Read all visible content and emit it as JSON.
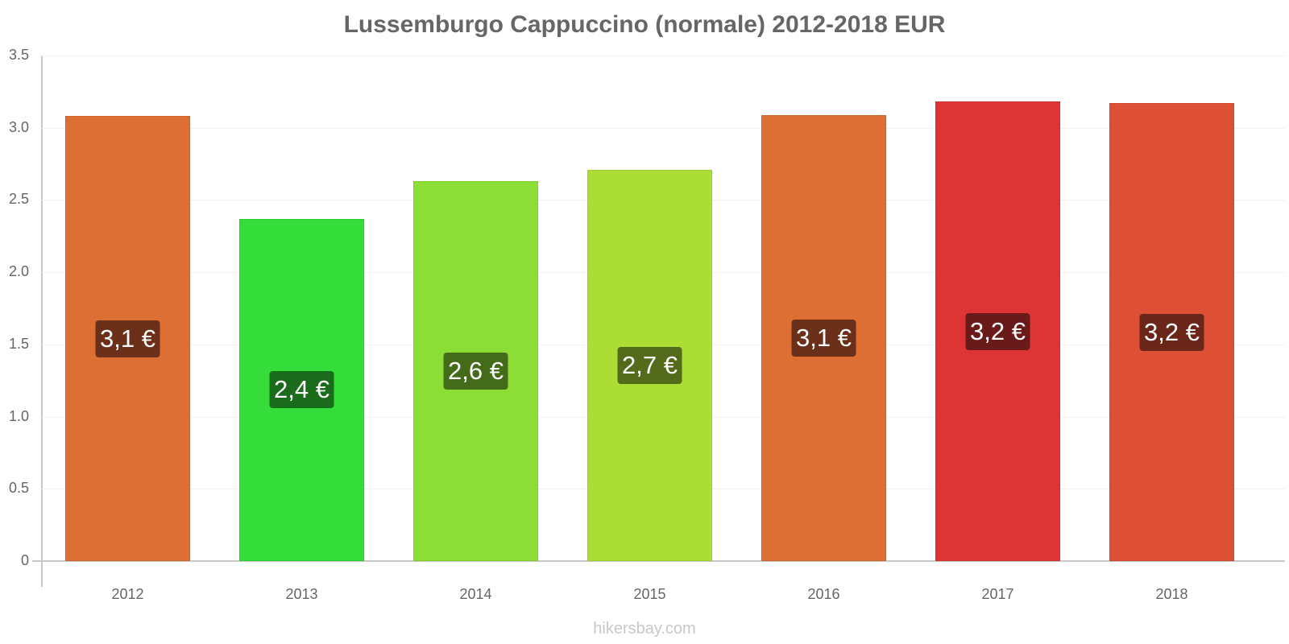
{
  "header": {
    "title": "Lussemburgo Cappuccino (normale) 2012-2018 EUR"
  },
  "footer": {
    "watermark": "hikersbay.com"
  },
  "axis": {
    "y_ticks": [
      "0",
      "0.5",
      "1.0",
      "1.5",
      "2.0",
      "2.5",
      "3.0",
      "3.5"
    ],
    "x_ticks": [
      "2012",
      "2013",
      "2014",
      "2015",
      "2016",
      "2017",
      "2018"
    ]
  },
  "bars": [
    {
      "year": "2012",
      "label": "3,1 €",
      "value": 3.08,
      "color": "#dd6f35",
      "label_bg": "#6b3019"
    },
    {
      "year": "2013",
      "label": "2,4 €",
      "value": 2.37,
      "color": "#35dd3a",
      "label_bg": "#1a6b1c"
    },
    {
      "year": "2014",
      "label": "2,6 €",
      "value": 2.63,
      "color": "#8cdd35",
      "label_bg": "#446b1a"
    },
    {
      "year": "2015",
      "label": "2,7 €",
      "value": 2.71,
      "color": "#acdd35",
      "label_bg": "#536b1a"
    },
    {
      "year": "2016",
      "label": "3,1 €",
      "value": 3.09,
      "color": "#dd6f35",
      "label_bg": "#6b3019"
    },
    {
      "year": "2017",
      "label": "3,2 €",
      "value": 3.18,
      "color": "#dd3535",
      "label_bg": "#6b1a1a"
    },
    {
      "year": "2018",
      "label": "3,2 €",
      "value": 3.17,
      "color": "#dd5035",
      "label_bg": "#6b261a"
    }
  ],
  "chart_data": {
    "type": "bar",
    "title": "Lussemburgo Cappuccino (normale) 2012-2018 EUR",
    "categories": [
      "2012",
      "2013",
      "2014",
      "2015",
      "2016",
      "2017",
      "2018"
    ],
    "values": [
      3.08,
      2.37,
      2.63,
      2.71,
      3.09,
      3.18,
      3.17
    ],
    "data_labels": [
      "3,1 €",
      "2,4 €",
      "2,6 €",
      "2,7 €",
      "3,1 €",
      "3,2 €",
      "3,2 €"
    ],
    "xlabel": "",
    "ylabel": "",
    "ylim": [
      0,
      3.5
    ],
    "yticks": [
      0,
      0.5,
      1.0,
      1.5,
      2.0,
      2.5,
      3.0,
      3.5
    ],
    "grid": true,
    "legend": "none",
    "source": "hikersbay.com"
  }
}
